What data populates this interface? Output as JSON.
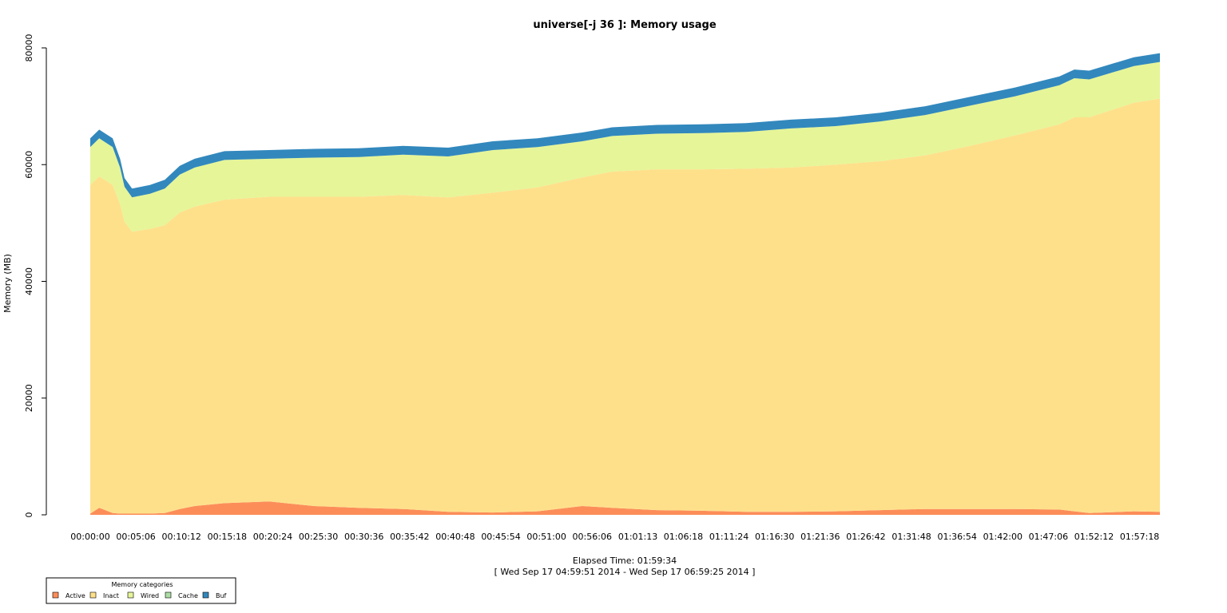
{
  "chart_data": {
    "type": "area",
    "stacked": true,
    "title": "universe[-j 36  ]: Memory usage",
    "xlabel": "Elapsed Time: 01:59:34",
    "subtitle": "[ Wed Sep 17 04:59:51 2014 - Wed Sep 17 06:59:25 2014 ]",
    "ylabel": "Memory (MB)",
    "ylim": [
      0,
      80000
    ],
    "y_ticks": [
      0,
      20000,
      40000,
      60000,
      80000
    ],
    "y_tick_labels": [
      "0",
      "20000",
      "40000",
      "60000",
      "80000"
    ],
    "x_range_seconds": [
      0,
      7174
    ],
    "x_ticks": [
      0,
      306,
      612,
      918,
      1224,
      1530,
      1836,
      2142,
      2448,
      2754,
      3060,
      3366,
      3673,
      3978,
      4284,
      4590,
      4896,
      5202,
      5508,
      5814,
      6120,
      6426,
      6732,
      7038
    ],
    "x_tick_labels": [
      "00:00:00",
      "00:05:06",
      "00:10:12",
      "00:15:18",
      "00:20:24",
      "00:25:30",
      "00:30:36",
      "00:35:42",
      "00:40:48",
      "00:45:54",
      "00:51:00",
      "00:56:06",
      "01:01:13",
      "01:06:18",
      "01:11:24",
      "01:16:30",
      "01:21:36",
      "01:26:42",
      "01:31:48",
      "01:36:54",
      "01:42:00",
      "01:47:06",
      "01:52:12",
      "01:57:18"
    ],
    "x": [
      0,
      60,
      150,
      200,
      230,
      280,
      400,
      500,
      600,
      700,
      900,
      1200,
      1500,
      1800,
      2100,
      2400,
      2700,
      3000,
      3300,
      3500,
      3800,
      4100,
      4400,
      4700,
      5000,
      5300,
      5600,
      5900,
      6200,
      6500,
      6600,
      6700,
      7000,
      7174
    ],
    "series": [
      {
        "name": "Active",
        "color": "#fc8d59",
        "values": [
          200,
          1200,
          300,
          200,
          200,
          200,
          200,
          300,
          1000,
          1500,
          2000,
          2300,
          1500,
          1200,
          1000,
          500,
          400,
          600,
          1500,
          1200,
          800,
          700,
          500,
          500,
          600,
          800,
          1000,
          1000,
          1000,
          900,
          600,
          300,
          600,
          500
        ]
      },
      {
        "name": "Inact",
        "color": "#fee08b",
        "values": [
          56300,
          56800,
          56200,
          53000,
          50000,
          48300,
          48800,
          49300,
          50800,
          51300,
          52000,
          52200,
          53000,
          53300,
          53800,
          53900,
          54800,
          55500,
          56300,
          57600,
          58400,
          58500,
          58800,
          59000,
          59400,
          59800,
          60600,
          62200,
          64000,
          66000,
          67500,
          67800,
          70000,
          70800
        ]
      },
      {
        "name": "Wired",
        "color": "#e6f598",
        "values": [
          6500,
          6500,
          6500,
          6300,
          6000,
          5900,
          6000,
          6300,
          6500,
          6700,
          6800,
          6500,
          6700,
          6800,
          6900,
          7000,
          7300,
          6900,
          6200,
          6100,
          6100,
          6200,
          6300,
          6700,
          6600,
          6800,
          6900,
          6900,
          6700,
          6700,
          6700,
          6500,
          6300,
          6300
        ]
      },
      {
        "name": "Cache",
        "color": "#abdda4",
        "values": [
          0,
          0,
          0,
          0,
          0,
          0,
          0,
          0,
          0,
          0,
          0,
          0,
          0,
          0,
          0,
          0,
          0,
          0,
          0,
          0,
          0,
          0,
          0,
          0,
          0,
          0,
          0,
          0,
          0,
          0,
          0,
          0,
          0,
          0
        ]
      },
      {
        "name": "Buf",
        "color": "#3288bd",
        "values": [
          1500,
          1500,
          1500,
          1500,
          1500,
          1500,
          1500,
          1500,
          1500,
          1500,
          1500,
          1500,
          1500,
          1500,
          1500,
          1500,
          1500,
          1500,
          1500,
          1500,
          1500,
          1500,
          1500,
          1500,
          1500,
          1500,
          1500,
          1500,
          1500,
          1500,
          1500,
          1500,
          1500,
          1500
        ]
      }
    ],
    "legend": {
      "title": "Memory categories",
      "placement": "bottom-left",
      "entries": [
        "Active",
        "Inact",
        "Wired",
        "Cache",
        "Buf"
      ]
    },
    "grid": false
  }
}
